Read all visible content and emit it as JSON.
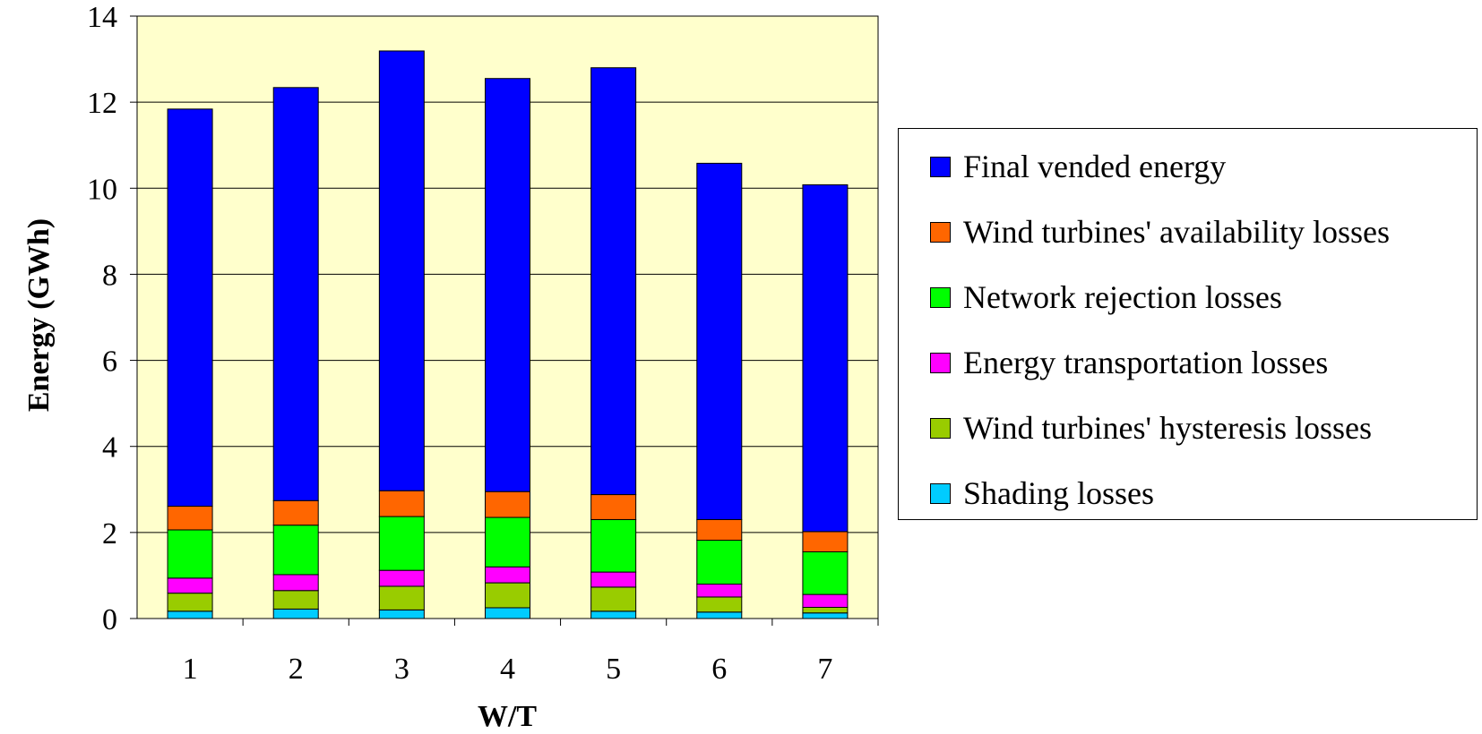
{
  "chart_data": {
    "type": "bar",
    "stacked": true,
    "xlabel": "W/T",
    "ylabel": "Energy (GWh)",
    "ylim": [
      0,
      14
    ],
    "yticks": [
      0,
      2,
      4,
      6,
      8,
      10,
      12,
      14
    ],
    "grid": true,
    "plot_background": "#FFFFCC",
    "legend_position": "right",
    "categories": [
      "1",
      "2",
      "3",
      "4",
      "5",
      "6",
      "7"
    ],
    "series": [
      {
        "name": "Shading losses",
        "color": "#00CCFF",
        "values": [
          0.17,
          0.22,
          0.2,
          0.25,
          0.17,
          0.15,
          0.13
        ]
      },
      {
        "name": "Wind turbines' hysteresis losses",
        "color": "#99CC00",
        "values": [
          0.42,
          0.43,
          0.55,
          0.58,
          0.56,
          0.35,
          0.13
        ]
      },
      {
        "name": "Energy transportation losses",
        "color": "#FF00FF",
        "values": [
          0.35,
          0.37,
          0.37,
          0.37,
          0.35,
          0.3,
          0.3
        ]
      },
      {
        "name": "Network rejection losses",
        "color": "#00FF00",
        "values": [
          1.12,
          1.15,
          1.25,
          1.15,
          1.22,
          1.02,
          0.99
        ]
      },
      {
        "name": "Wind turbines' availability losses",
        "color": "#FF6600",
        "values": [
          0.55,
          0.57,
          0.6,
          0.6,
          0.58,
          0.48,
          0.47
        ]
      },
      {
        "name": "Final vended energy",
        "color": "#0000FF",
        "values": [
          9.23,
          9.6,
          10.22,
          9.6,
          9.92,
          8.28,
          8.06
        ]
      }
    ]
  },
  "legend": {
    "items": [
      {
        "label": "Final vended energy",
        "color": "#0000FF"
      },
      {
        "label": "Wind turbines' availability losses",
        "color": "#FF6600"
      },
      {
        "label": "Network rejection losses",
        "color": "#00FF00"
      },
      {
        "label": "Energy transportation losses",
        "color": "#FF00FF"
      },
      {
        "label": "Wind turbines' hysteresis losses",
        "color": "#99CC00"
      },
      {
        "label": "Shading losses",
        "color": "#00CCFF"
      }
    ]
  }
}
